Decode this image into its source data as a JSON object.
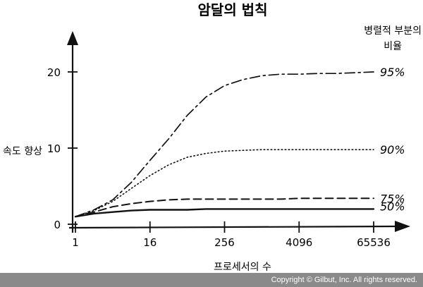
{
  "chart_data": {
    "type": "line",
    "title": "암달의 법칙",
    "xlabel": "프로세서의 수",
    "ylabel": "속도 향상",
    "legend_title": "병렬적 부분의 비율",
    "x_ticks": [
      "1",
      "16",
      "256",
      "4096",
      "65536"
    ],
    "y_ticks": [
      "0",
      "10",
      "20"
    ],
    "xlim": [
      0,
      16
    ],
    "ylim": [
      0,
      26
    ],
    "grid": false,
    "series": [
      {
        "name": "95%",
        "dash": "dashdot",
        "x": [
          0,
          1,
          2,
          3,
          4,
          5,
          6,
          7,
          8,
          9,
          10,
          11,
          12,
          13,
          14,
          15,
          16
        ],
        "values": [
          1,
          1.9,
          3.2,
          5.5,
          8.4,
          11.2,
          14.3,
          16.7,
          18.2,
          19.0,
          19.5,
          19.7,
          19.7,
          19.8,
          19.8,
          19.9,
          20.0
        ]
      },
      {
        "name": "90%",
        "dash": "dot",
        "x": [
          0,
          1,
          2,
          3,
          4,
          5,
          6,
          7,
          8,
          9,
          10,
          11,
          12,
          13,
          14,
          15,
          16
        ],
        "values": [
          1,
          1.8,
          3.0,
          4.7,
          6.4,
          7.8,
          8.8,
          9.3,
          9.6,
          9.7,
          9.8,
          9.8,
          9.8,
          9.8,
          9.8,
          9.8,
          9.8
        ]
      },
      {
        "name": "75%",
        "dash": "dash",
        "x": [
          0,
          1,
          2,
          3,
          4,
          5,
          6,
          7,
          8,
          9,
          10,
          11,
          12,
          13,
          14,
          15,
          16
        ],
        "values": [
          1,
          1.6,
          2.3,
          2.7,
          3.0,
          3.2,
          3.3,
          3.3,
          3.3,
          3.3,
          3.3,
          3.3,
          3.4,
          3.4,
          3.4,
          3.4,
          3.4
        ]
      },
      {
        "name": "50%",
        "dash": "solid",
        "x": [
          0,
          1,
          2,
          3,
          4,
          5,
          6,
          7,
          8,
          9,
          10,
          11,
          12,
          13,
          14,
          15,
          16
        ],
        "values": [
          1,
          1.4,
          1.6,
          1.8,
          1.9,
          1.9,
          1.9,
          2.0,
          2.0,
          2.0,
          2.0,
          2.0,
          2.0,
          2.0,
          2.0,
          2.0,
          2.0
        ]
      }
    ]
  },
  "footer": {
    "copyright": "Copyright © Gilbut, Inc. All rights reserved."
  }
}
